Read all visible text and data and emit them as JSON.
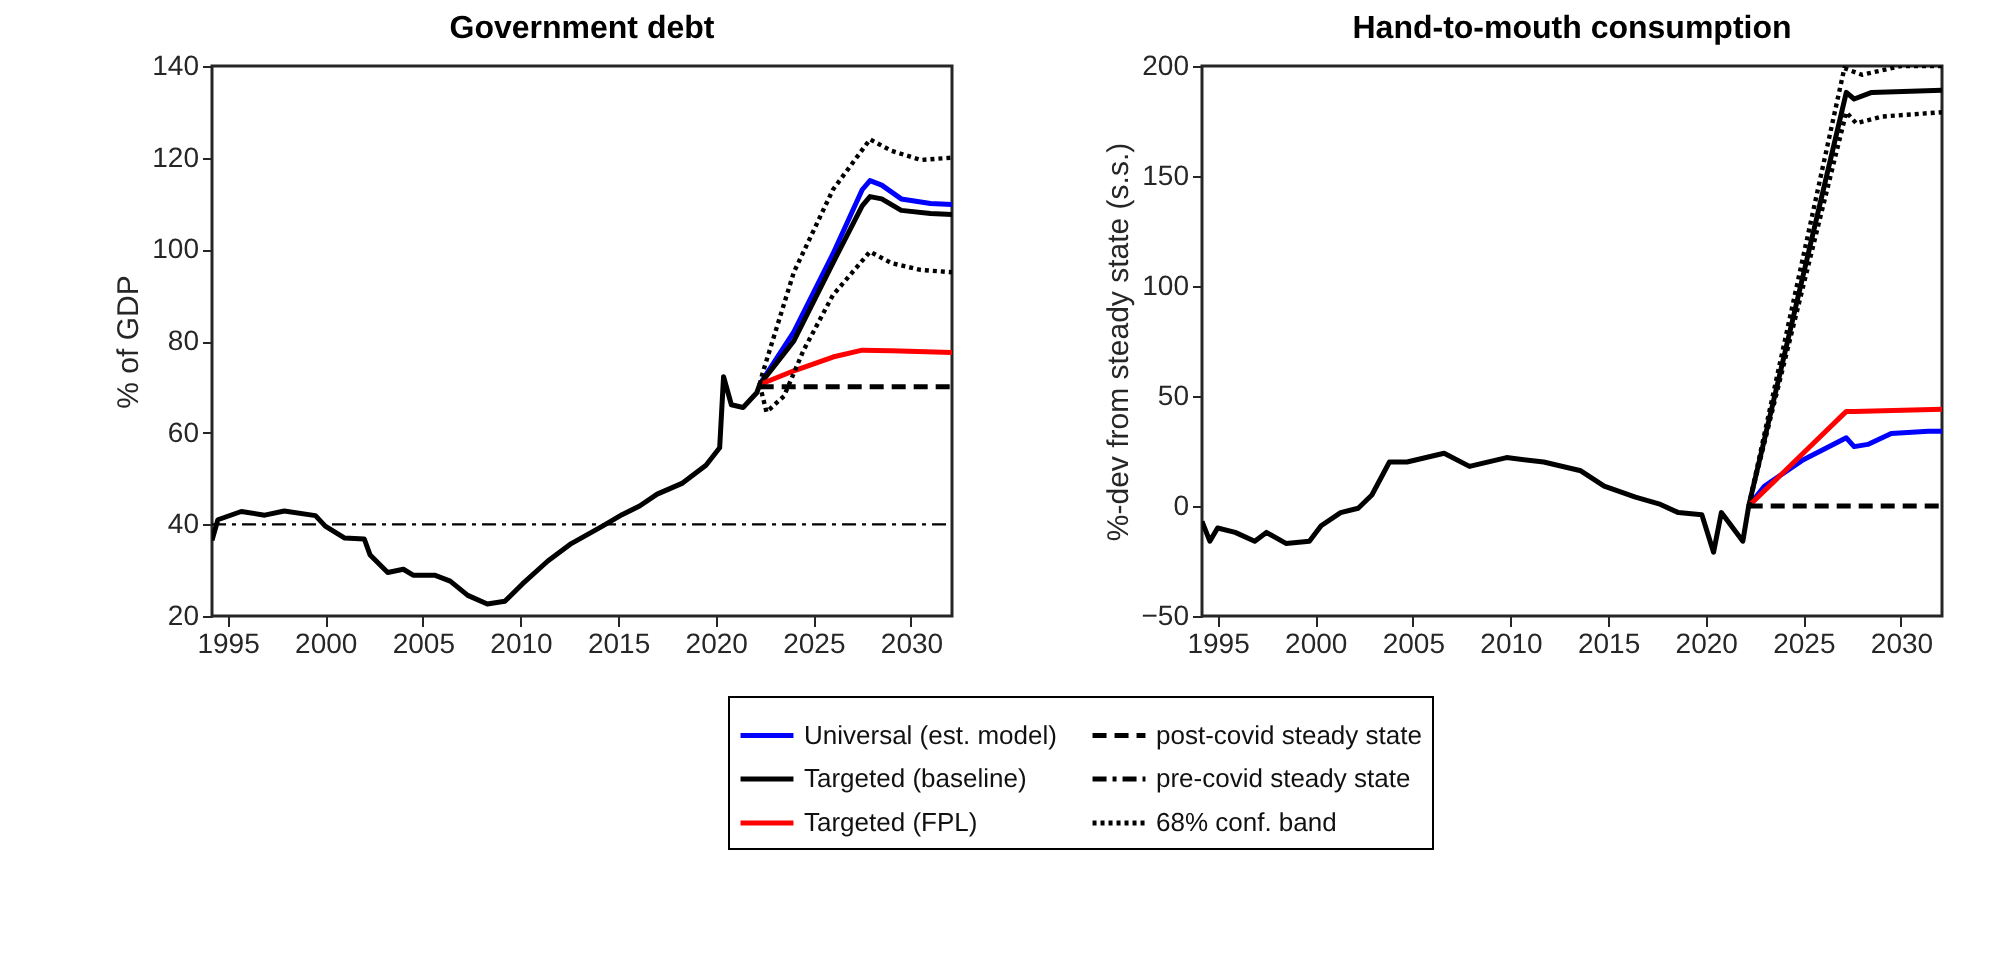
{
  "chart_data": [
    {
      "type": "line",
      "title": "Government debt",
      "ylabel": "% of GDP",
      "xlim": [
        1994.2,
        2032.1
      ],
      "xticks": [
        1995,
        2000,
        2005,
        2010,
        2015,
        2020,
        2025,
        2030
      ],
      "ylim": [
        20,
        140
      ],
      "yticks": [
        20,
        40,
        60,
        80,
        100,
        120,
        140
      ],
      "grid": false,
      "legend": "bottom",
      "series": [
        {
          "name": "Universal (est. model)",
          "color": "#0000ff",
          "line_style": "solid",
          "x": [
            2022.25,
            2024,
            2026,
            2027.5,
            2027.9,
            2028.5,
            2029.5,
            2031,
            2032.1
          ],
          "values": [
            70.5,
            82,
            99,
            113,
            115,
            114,
            111,
            110,
            109.8
          ]
        },
        {
          "name": "Targeted (baseline)",
          "color": "#000000",
          "line_style": "solid",
          "x": [
            1994.2,
            1994.5,
            1995.7,
            1996.9,
            1997.9,
            1999.5,
            2000,
            2001,
            2002,
            2002.3,
            2003.2,
            2004,
            2004.5,
            2005.6,
            2006.4,
            2007.3,
            2008.3,
            2009.2,
            2010.1,
            2011.4,
            2012.6,
            2014.2,
            2015.2,
            2016.1,
            2017,
            2018.3,
            2019.5,
            2020.2,
            2020.4,
            2020.8,
            2021.4,
            2022.1,
            2022.25,
            2024,
            2026,
            2027.5,
            2027.9,
            2028.5,
            2029.5,
            2031,
            2032.1
          ],
          "values": [
            36.5,
            41,
            42.8,
            42,
            42.9,
            41.9,
            39.6,
            37,
            36.8,
            33.3,
            29.5,
            30.2,
            28.9,
            28.9,
            27.6,
            24.5,
            22.6,
            23.2,
            27,
            32,
            35.8,
            39.6,
            42.1,
            44,
            46.6,
            49,
            52.9,
            56.7,
            72.2,
            66.1,
            65.5,
            68.7,
            70.5,
            80,
            97,
            109.5,
            111.5,
            111,
            108.5,
            107.8,
            107.6
          ]
        },
        {
          "name": "Targeted (FPL)",
          "color": "#ff0000",
          "line_style": "solid",
          "x": [
            2022.25,
            2024,
            2026,
            2027.5,
            2029,
            2032.1
          ],
          "values": [
            70.5,
            73.5,
            76.5,
            78,
            77.9,
            77.5
          ]
        },
        {
          "name": "post-covid steady state",
          "color": "#000000",
          "line_style": "dashed",
          "x": [
            2022.25,
            2032.1
          ],
          "values": [
            70,
            70
          ]
        },
        {
          "name": "pre-covid steady state",
          "color": "#000000",
          "line_style": "dashdot",
          "x": [
            1994.2,
            2032.1
          ],
          "values": [
            40,
            40
          ]
        },
        {
          "name": "68% conf. band",
          "color": "#000000",
          "line_style": "dotted",
          "x": [
            2022.25,
            2022.4,
            2024,
            2026,
            2027.9,
            2029,
            2030.5,
            2032.1
          ],
          "values": [
            70.5,
            73,
            95,
            113,
            124,
            121.5,
            119.5,
            120
          ]
        },
        {
          "color": "#000000",
          "line_style": "dotted",
          "x": [
            2022.25,
            2022.6,
            2023.5,
            2024.5,
            2026,
            2027.9,
            2029,
            2030.5,
            2032.1
          ],
          "values": [
            70.5,
            64.5,
            68,
            78,
            90,
            99.5,
            97,
            95.5,
            95
          ]
        }
      ]
    },
    {
      "type": "line",
      "title": "Hand-to-mouth consumption",
      "ylabel": "%-dev from steady state (s.s.)",
      "xlim": [
        1994.2,
        2032.1
      ],
      "xticks": [
        1995,
        2000,
        2005,
        2010,
        2015,
        2020,
        2025,
        2030
      ],
      "ylim": [
        -50,
        200
      ],
      "yticks": [
        -50,
        0,
        50,
        100,
        150,
        200
      ],
      "grid": false,
      "series": [
        {
          "name": "Universal (est. model)",
          "color": "#0000ff",
          "line_style": "solid",
          "x": [
            2022.2,
            2023,
            2024,
            2025,
            2027.2,
            2027.6,
            2028.3,
            2029.5,
            2031.4,
            2032.1
          ],
          "values": [
            0,
            9,
            15,
            21,
            31,
            27,
            28,
            33,
            34,
            34
          ]
        },
        {
          "name": "Targeted (baseline)",
          "color": "#000000",
          "line_style": "solid",
          "x": [
            1994.2,
            1994.6,
            1995,
            1995.9,
            1996.9,
            1997.5,
            1998.5,
            1999.7,
            2000.3,
            2001.3,
            2002.2,
            2002.9,
            2003.8,
            2004.7,
            2006.6,
            2007.9,
            2009.8,
            2011.7,
            2013.6,
            2014.8,
            2016.4,
            2017.6,
            2018.6,
            2019.8,
            2020.4,
            2020.8,
            2021.9,
            2022.2,
            2027.2,
            2027.6,
            2028.5,
            2032.1
          ],
          "values": [
            -7,
            -16,
            -10,
            -12,
            -16,
            -12,
            -17,
            -16,
            -9,
            -3,
            -1,
            5,
            20,
            20,
            24,
            18,
            22,
            20,
            16,
            9,
            4,
            1,
            -3,
            -4,
            -21,
            -3,
            -16,
            0,
            188,
            185,
            188,
            189
          ]
        },
        {
          "name": "Targeted (FPL)",
          "color": "#ff0000",
          "line_style": "solid",
          "x": [
            2022.2,
            2027.2,
            2027.6,
            2032.1
          ],
          "values": [
            0,
            43,
            43,
            44
          ]
        },
        {
          "name": "post-covid steady state",
          "color": "#000000",
          "line_style": "dashed",
          "x": [
            2022.2,
            2032.1
          ],
          "values": [
            0,
            0
          ]
        },
        {
          "name": "68% conf. band",
          "color": "#000000",
          "line_style": "dotted",
          "x": [
            2022.2,
            2027.1,
            2028,
            2030,
            2032.1
          ],
          "values": [
            0,
            199,
            196,
            200,
            200
          ]
        },
        {
          "color": "#000000",
          "line_style": "dotted",
          "x": [
            2022.2,
            2027.2,
            2027.7,
            2029,
            2032.1
          ],
          "values": [
            0,
            179,
            174,
            177,
            179
          ]
        }
      ]
    }
  ]
}
